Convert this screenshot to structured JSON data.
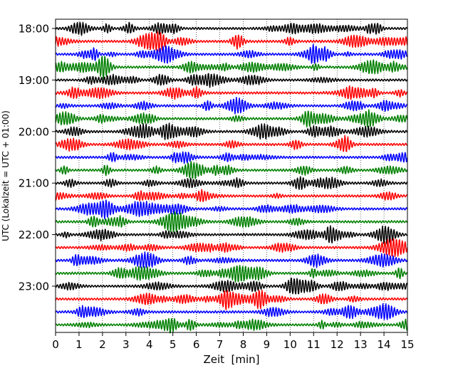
{
  "chart_data": {
    "type": "line",
    "title": "",
    "xlabel": "Zeit  [min]",
    "ylabel": "UTC (Lokalzeit = UTC + 01:00)",
    "xlim": [
      0,
      15
    ],
    "x_ticks": [
      0,
      1,
      2,
      3,
      4,
      5,
      6,
      7,
      8,
      9,
      10,
      11,
      12,
      13,
      14,
      15
    ],
    "y_tick_labels": [
      "18:00",
      "19:00",
      "20:00",
      "21:00",
      "22:00",
      "23:00"
    ],
    "trace_interval_minutes": 15,
    "trace_start": "18:00",
    "trace_count": 24,
    "trace_colors": [
      "#000000",
      "#ff0000",
      "#0000ff",
      "#008000"
    ],
    "grid": "vertical dotted lines at each minute",
    "legend": "none"
  }
}
